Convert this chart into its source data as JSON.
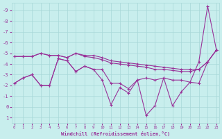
{
  "xlabel": "Windchill (Refroidissement éolien,°C)",
  "bg_color": "#c8eeed",
  "grid_color": "#a8d8d8",
  "line_color": "#993399",
  "x_values": [
    0,
    1,
    2,
    3,
    4,
    5,
    6,
    7,
    8,
    9,
    10,
    11,
    12,
    13,
    14,
    15,
    16,
    17,
    18,
    19,
    20,
    21,
    22,
    23
  ],
  "series_jagged": [
    -2.2,
    -2.7,
    -3.0,
    -2.0,
    -2.0,
    -4.5,
    -4.3,
    -3.3,
    -3.8,
    -3.5,
    -2.5,
    -0.2,
    -1.8,
    -1.3,
    -2.5,
    0.8,
    -0.1,
    -2.7,
    -0.1,
    -1.4,
    -2.3,
    -4.2,
    -9.4,
    -5.3
  ],
  "series_upper": [
    -2.2,
    -2.7,
    -3.0,
    -2.0,
    -2.0,
    -4.5,
    -4.3,
    -3.3,
    -3.8,
    -3.5,
    -3.5,
    -2.2,
    -2.2,
    -1.7,
    -2.5,
    -2.7,
    -2.5,
    -2.7,
    -2.5,
    -2.5,
    -2.3,
    -2.2,
    -4.2,
    -5.3
  ],
  "series_mid1": [
    -4.7,
    -4.7,
    -4.7,
    -5.0,
    -4.8,
    -4.8,
    -4.6,
    -5.0,
    -4.7,
    -4.6,
    -4.4,
    -4.1,
    -4.0,
    -3.9,
    -3.8,
    -3.7,
    -3.5,
    -3.5,
    -3.4,
    -3.3,
    -3.3,
    -3.5,
    -4.2,
    -5.3
  ],
  "series_mid2": [
    -4.7,
    -4.7,
    -4.7,
    -5.0,
    -4.8,
    -4.8,
    -4.6,
    -5.0,
    -4.8,
    -4.8,
    -4.6,
    -4.3,
    -4.2,
    -4.1,
    -4.0,
    -3.9,
    -3.8,
    -3.7,
    -3.6,
    -3.5,
    -3.5,
    -3.5,
    -4.2,
    -5.3
  ],
  "ylim_top": 1.5,
  "ylim_bottom": -9.7,
  "xlim_left": -0.3,
  "xlim_right": 23.3,
  "yticks": [
    1,
    0,
    -1,
    -2,
    -3,
    -4,
    -5,
    -6,
    -7,
    -8,
    -9
  ],
  "xticks": [
    0,
    1,
    2,
    3,
    4,
    5,
    6,
    7,
    8,
    9,
    10,
    11,
    12,
    13,
    14,
    15,
    16,
    17,
    18,
    19,
    20,
    21,
    22,
    23
  ]
}
